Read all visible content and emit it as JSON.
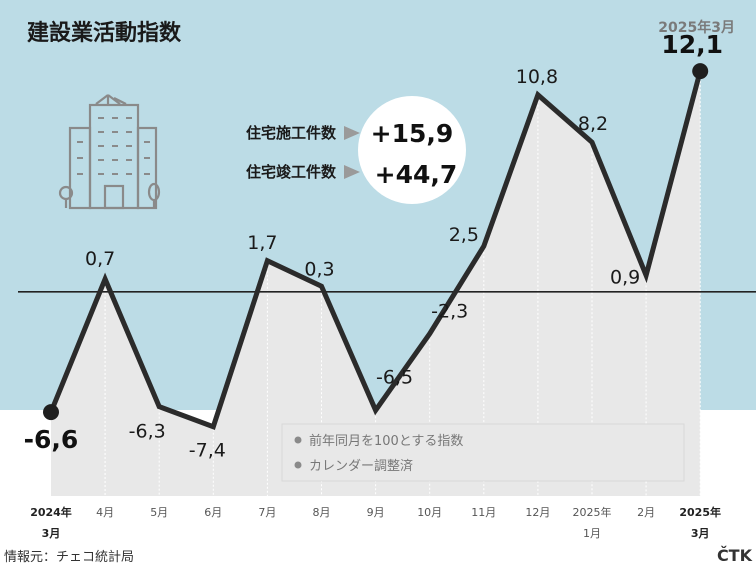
{
  "header": {
    "title": "建設業活動指数",
    "date": "2025年3月"
  },
  "kpis": [
    {
      "label": "住宅施工件数",
      "value": "+15,9"
    },
    {
      "label": "住宅竣工件数",
      "value": "+44,7"
    }
  ],
  "legend": {
    "items": [
      "前年同月を100とする指数",
      "カレンダー調整済"
    ]
  },
  "footer": {
    "source": "情報元：チェコ統計局",
    "brand": "ČTK"
  },
  "colors": {
    "sky": "#bcdce6",
    "area": "#e8e8e8",
    "line": "#2b2b2b",
    "baseline": "#222222"
  },
  "chart_data": {
    "type": "line",
    "categories": [
      {
        "top": "2024年",
        "bottom": "3月"
      },
      {
        "top": "4月",
        "bottom": ""
      },
      {
        "top": "5月",
        "bottom": ""
      },
      {
        "top": "6月",
        "bottom": ""
      },
      {
        "top": "7月",
        "bottom": ""
      },
      {
        "top": "8月",
        "bottom": ""
      },
      {
        "top": "9月",
        "bottom": ""
      },
      {
        "top": "10月",
        "bottom": ""
      },
      {
        "top": "11月",
        "bottom": ""
      },
      {
        "top": "12月",
        "bottom": ""
      },
      {
        "top": "2025年",
        "bottom": "1月"
      },
      {
        "top": "2月",
        "bottom": ""
      },
      {
        "top": "2025年",
        "bottom": "3月"
      }
    ],
    "values": [
      -6.6,
      0.7,
      -6.3,
      -7.4,
      1.7,
      0.3,
      -6.5,
      -2.3,
      2.5,
      10.8,
      8.2,
      0.9,
      12.1
    ],
    "labels": [
      "-6,6",
      "0,7",
      "-6,3",
      "-7,4",
      "1,7",
      "0,3",
      "-6,5",
      "-2,3",
      "2,5",
      "10,8",
      "8,2",
      "0,9",
      "12,1"
    ],
    "ylim": [
      -11.2,
      16.0
    ],
    "baseline": 0
  }
}
